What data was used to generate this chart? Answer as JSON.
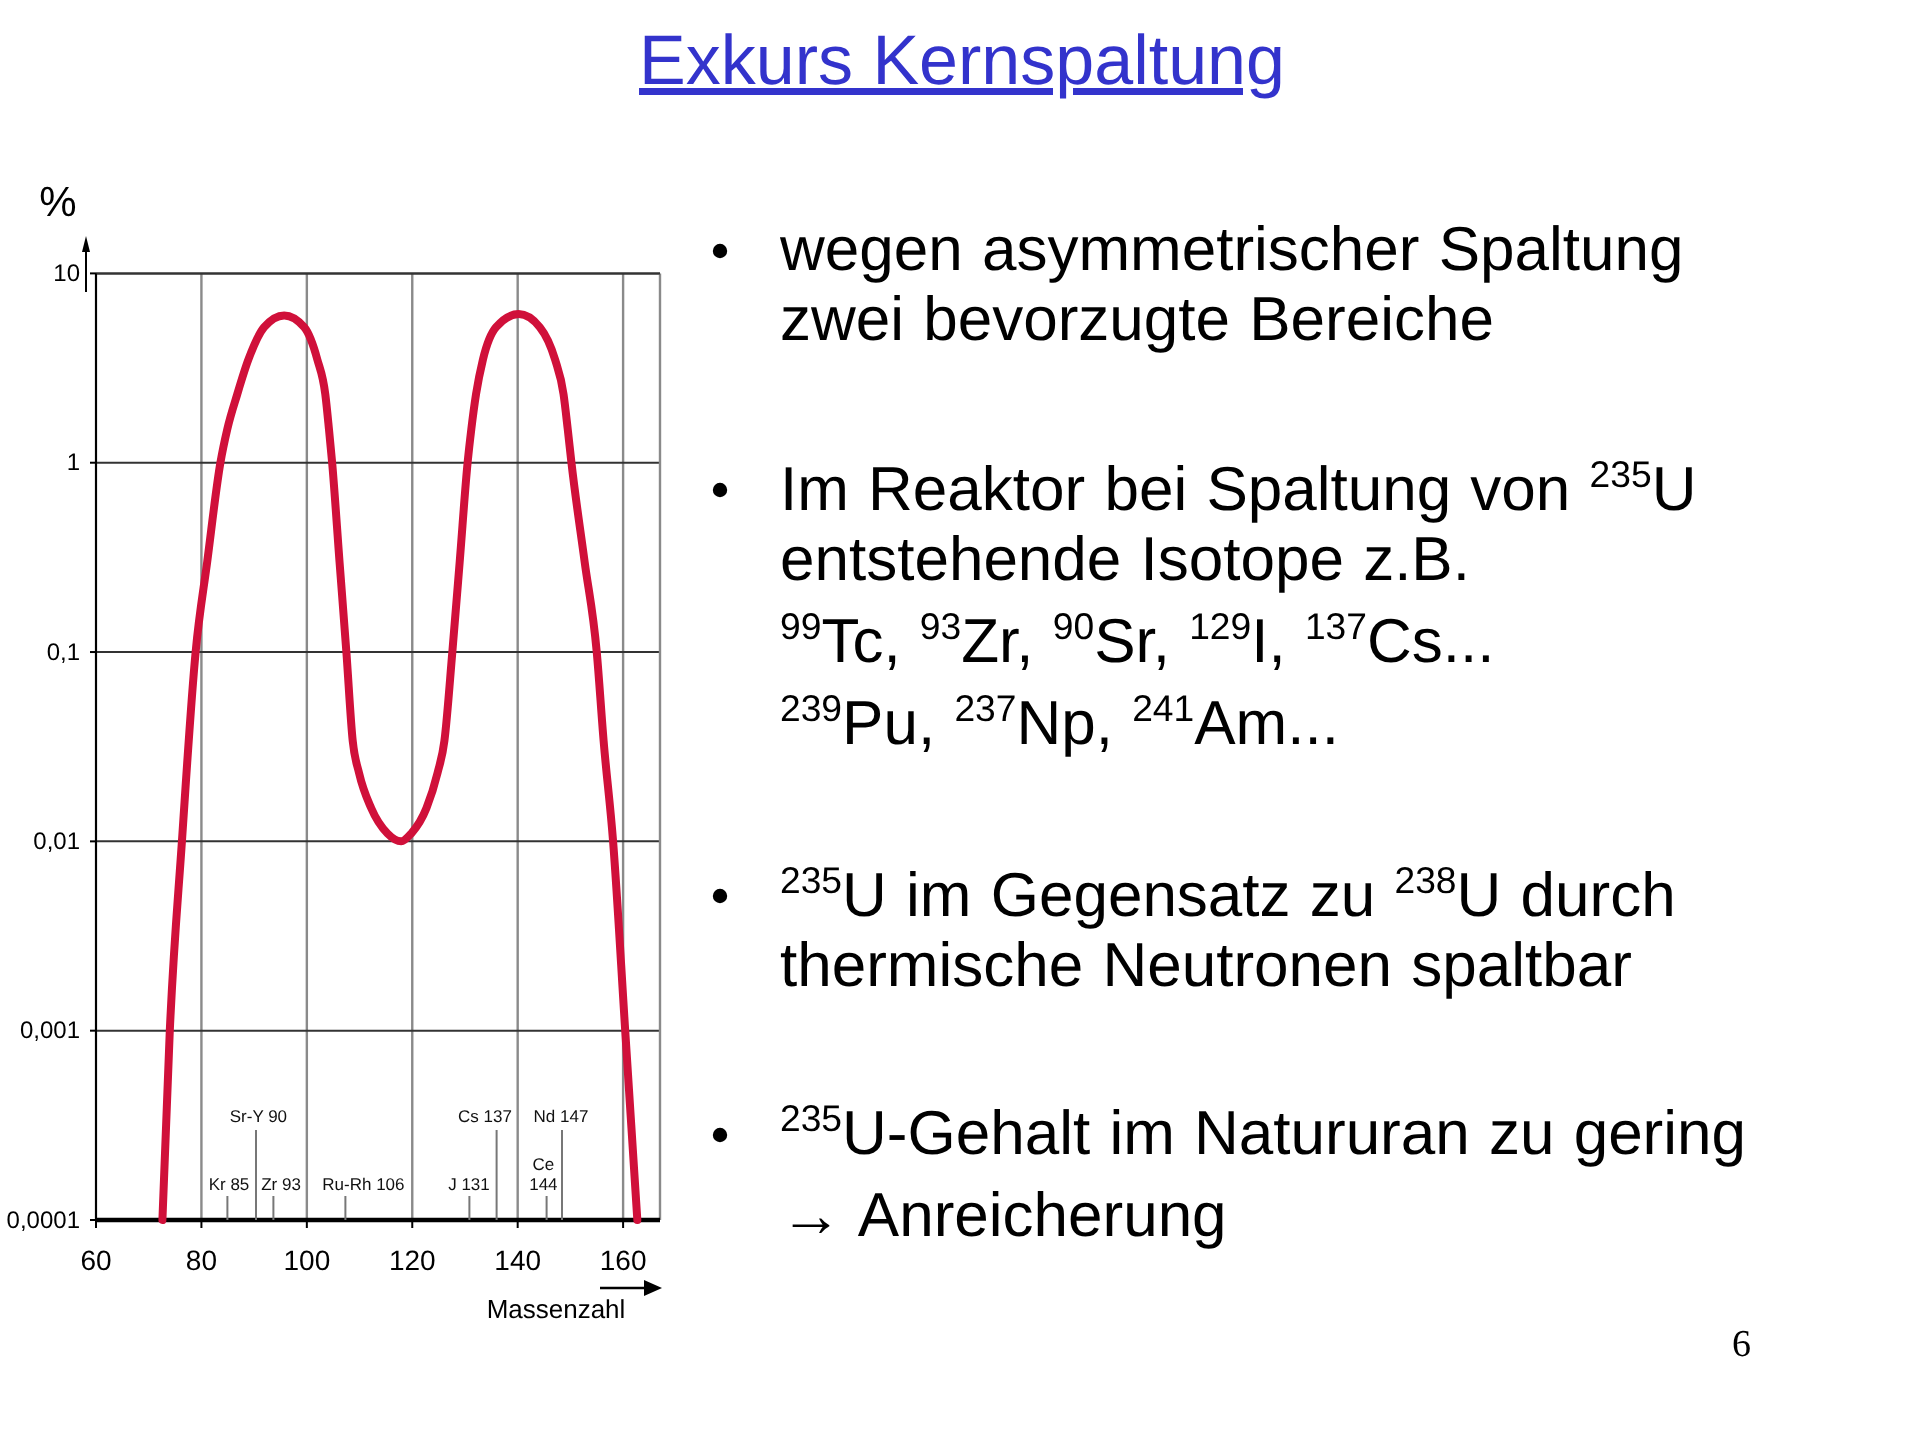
{
  "chart_data": {
    "type": "line",
    "title": "Exkurs Kernspaltung",
    "xlabel": "Massenzahl",
    "ylabel": "%",
    "x": [
      72.6,
      74,
      76.3,
      78.9,
      81.1,
      83.6,
      84.9,
      86.8,
      88.9,
      91.9,
      95.7,
      99.5,
      102,
      103.5,
      104.2,
      104.8,
      106.2,
      107.5,
      108.7,
      109.9,
      112.2,
      115.3,
      117.9,
      119.8,
      122.7,
      124.8,
      126.1,
      127.6,
      129,
      130.5,
      131.2,
      132.1,
      133.4,
      135.9,
      140.2,
      144.2,
      147.1,
      148.7,
      149.5,
      150.2,
      152.7,
      155,
      156.3,
      158.1,
      160.4,
      162.7
    ],
    "values": [
      0.0001,
      0.001,
      0.01,
      0.1,
      0.3,
      1,
      1.5,
      2.3,
      3.5,
      5.2,
      6,
      5.2,
      3.5,
      2.3,
      1.5,
      1,
      0.3,
      0.1,
      0.034,
      0.023,
      0.015,
      0.011,
      0.01,
      0.011,
      0.015,
      0.023,
      0.034,
      0.1,
      0.3,
      1,
      1.5,
      2.3,
      3.5,
      5.2,
      6.1,
      5.2,
      3.5,
      2.3,
      1.5,
      1,
      0.3,
      0.1,
      0.034,
      0.01,
      0.001,
      0.0001
    ],
    "color": "#d0103a",
    "xlim": [
      60,
      167
    ],
    "xticks": [
      60,
      80,
      100,
      120,
      140,
      160
    ],
    "ylim": [
      0.0001,
      10
    ],
    "yticks": [
      {
        "value": 0.0001,
        "label": "0,0001"
      },
      {
        "value": 0.001,
        "label": "0,001"
      },
      {
        "value": 0.01,
        "label": "0,01"
      },
      {
        "value": 0.1,
        "label": "0,1"
      },
      1,
      10
    ],
    "log": "y",
    "grid": true,
    "annotations": [
      "Kr 85",
      "Sr-Y 90",
      "Zr 93",
      "Ru-Rh 106",
      "J 131",
      "Cs 137",
      "Ce\n144",
      "Nd 147",
      "wegen asymmetrischer Spaltung zwei bevorzugte Bereiche",
      "Im Reaktor bei Spaltung von $^{235}$U entstehende Isotope z.B.\n$^{99}$Tc, $^{93}$Zr, $^{90}$Sr, $^{129}$I, $^{137}$Cs...\n$^{239}$Pu, $^{237}$Np, $^{241}$Am...",
      "$^{235}$U im Gegensatz zu $^{238}$U durch thermische Neutronen spaltbar",
      "$^{235}$U-Gehalt im Natururan zu gering\n→ Anreicherung",
      "6"
    ]
  }
}
